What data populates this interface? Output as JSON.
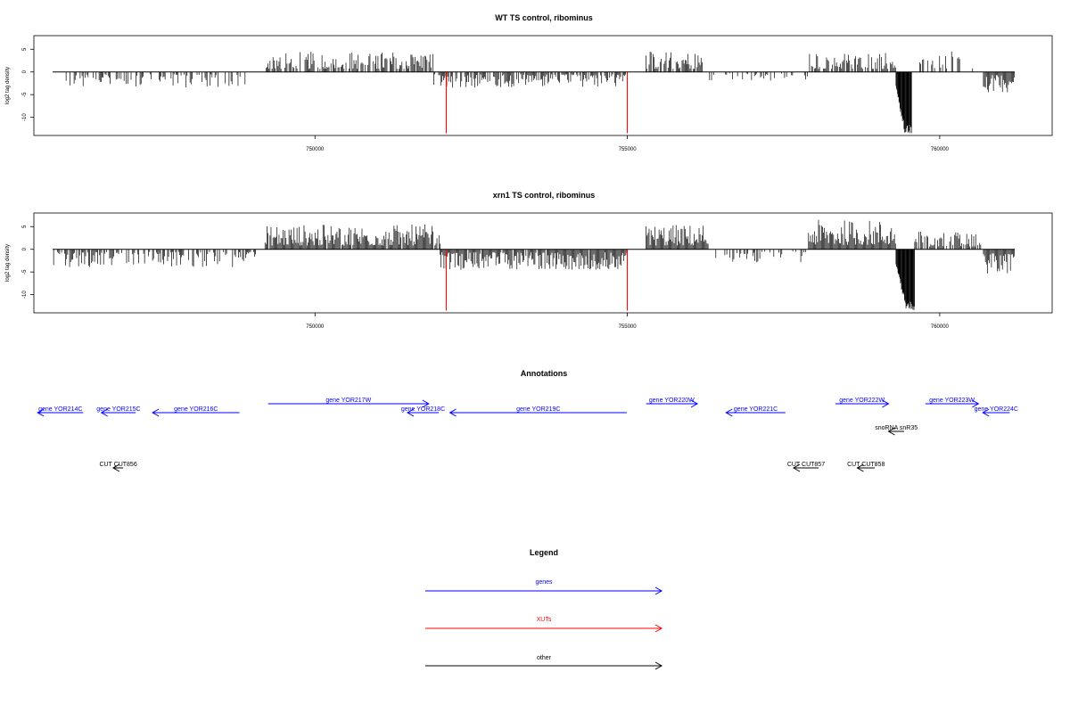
{
  "colors": {
    "genes": "#0000ff",
    "xuts": "#ff0000",
    "other": "#000000"
  },
  "panels": [
    {
      "title": "WT TS control, ribominus",
      "ylabel": "log2 tag density",
      "yticks": [
        "5",
        "0",
        "-5",
        "-10"
      ],
      "xticks": [
        "750000",
        "755000",
        "760000"
      ]
    },
    {
      "title": "xrn1 TS control, ribominus",
      "ylabel": "log2 tag density",
      "yticks": [
        "5",
        "0",
        "-5",
        "-10"
      ],
      "xticks": [
        "750000",
        "755000",
        "760000"
      ]
    }
  ],
  "annotations": {
    "title": "Annotations",
    "features": [
      {
        "label": "gene YOR214C",
        "type": "genes",
        "strand": "-",
        "start": 745560,
        "end": 746290
      },
      {
        "label": "gene YOR215C",
        "type": "genes",
        "strand": "-",
        "start": 746580,
        "end": 747130
      },
      {
        "label": "gene YOR216C",
        "type": "genes",
        "strand": "-",
        "start": 747400,
        "end": 748790
      },
      {
        "label": "gene YOR217W",
        "type": "genes",
        "strand": "+",
        "start": 749250,
        "end": 751820
      },
      {
        "label": "gene YOR218C",
        "type": "genes",
        "strand": "-",
        "start": 751480,
        "end": 751980
      },
      {
        "label": "gene YOR219C",
        "type": "genes",
        "strand": "-",
        "start": 752160,
        "end": 754990
      },
      {
        "label": "gene YOR220W",
        "type": "genes",
        "strand": "+",
        "start": 755300,
        "end": 756120
      },
      {
        "label": "gene YOR221C",
        "type": "genes",
        "strand": "-",
        "start": 756580,
        "end": 757530
      },
      {
        "label": "gene YOR222W",
        "type": "genes",
        "strand": "+",
        "start": 758330,
        "end": 759180
      },
      {
        "label": "gene YOR223W",
        "type": "genes",
        "strand": "+",
        "start": 759770,
        "end": 760620
      },
      {
        "label": "gene YOR224C",
        "type": "genes",
        "strand": "-",
        "start": 760690,
        "end": 761120
      },
      {
        "label": "snoRNA snR35",
        "type": "other",
        "strand": "-",
        "start": 759180,
        "end": 759430
      },
      {
        "label": "CUT CUT856",
        "type": "other",
        "strand": "-",
        "start": 746770,
        "end": 746930
      },
      {
        "label": "CUT CUT857",
        "type": "other",
        "strand": "-",
        "start": 757660,
        "end": 758060
      },
      {
        "label": "CUT CUT858",
        "type": "other",
        "strand": "-",
        "start": 758680,
        "end": 758960
      }
    ]
  },
  "legend": {
    "title": "Legend",
    "items": [
      {
        "label": "genes",
        "type": "genes"
      },
      {
        "label": "XUTs",
        "type": "xuts"
      },
      {
        "label": "other",
        "type": "other"
      }
    ]
  },
  "chart_data": [
    {
      "type": "bar",
      "title": "WT TS control, ribominus",
      "xlabel": "",
      "ylabel": "log2 tag density",
      "xlim": [
        745500,
        761800
      ],
      "ylim": [
        -14,
        8
      ],
      "grid": false,
      "xuts": [
        {
          "x": 752100,
          "from": 0,
          "to": -13.5
        },
        {
          "x": 755000,
          "from": 0,
          "to": -13.5
        }
      ],
      "regions": [
        {
          "start": 746000,
          "end": 748900,
          "sign": -1,
          "max": 3.5,
          "density": 0.45
        },
        {
          "start": 749200,
          "end": 751900,
          "sign": 1,
          "max": 4.5,
          "density": 0.7
        },
        {
          "start": 751900,
          "end": 755000,
          "sign": -1,
          "max": 3.5,
          "density": 0.75
        },
        {
          "start": 755300,
          "end": 756200,
          "sign": 1,
          "max": 4.5,
          "density": 0.8
        },
        {
          "start": 756300,
          "end": 757900,
          "sign": -1,
          "max": 2.0,
          "density": 0.3
        },
        {
          "start": 757900,
          "end": 759300,
          "sign": 1,
          "max": 4.5,
          "density": 0.7
        },
        {
          "start": 759300,
          "end": 759550,
          "sign": -1,
          "max": 13.5,
          "density": 1.0,
          "spike": true
        },
        {
          "start": 759550,
          "end": 760700,
          "sign": 1,
          "max": 4.5,
          "density": 0.3
        },
        {
          "start": 760700,
          "end": 761200,
          "sign": -1,
          "max": 4.5,
          "density": 1.0
        }
      ]
    },
    {
      "type": "bar",
      "title": "xrn1 TS control, ribominus",
      "xlabel": "",
      "ylabel": "log2 tag density",
      "xlim": [
        745500,
        761800
      ],
      "ylim": [
        -14,
        8
      ],
      "grid": false,
      "xuts": [
        {
          "x": 752100,
          "from": 0,
          "to": -13.5
        },
        {
          "x": 755000,
          "from": 0,
          "to": -13.5
        }
      ],
      "regions": [
        {
          "start": 745800,
          "end": 749100,
          "sign": -1,
          "max": 4.0,
          "density": 0.55
        },
        {
          "start": 749200,
          "end": 752000,
          "sign": 1,
          "max": 5.5,
          "density": 0.95
        },
        {
          "start": 752000,
          "end": 755000,
          "sign": -1,
          "max": 4.5,
          "density": 0.95
        },
        {
          "start": 755300,
          "end": 756300,
          "sign": 1,
          "max": 5.5,
          "density": 1.0
        },
        {
          "start": 756400,
          "end": 757900,
          "sign": -1,
          "max": 3.0,
          "density": 0.35
        },
        {
          "start": 757900,
          "end": 759300,
          "sign": 1,
          "max": 6.5,
          "density": 1.0
        },
        {
          "start": 759300,
          "end": 759600,
          "sign": -1,
          "max": 13.5,
          "density": 1.0,
          "spike": true
        },
        {
          "start": 759600,
          "end": 760700,
          "sign": 1,
          "max": 4.0,
          "density": 0.7
        },
        {
          "start": 760700,
          "end": 761200,
          "sign": -1,
          "max": 5.5,
          "density": 1.0
        }
      ]
    }
  ]
}
